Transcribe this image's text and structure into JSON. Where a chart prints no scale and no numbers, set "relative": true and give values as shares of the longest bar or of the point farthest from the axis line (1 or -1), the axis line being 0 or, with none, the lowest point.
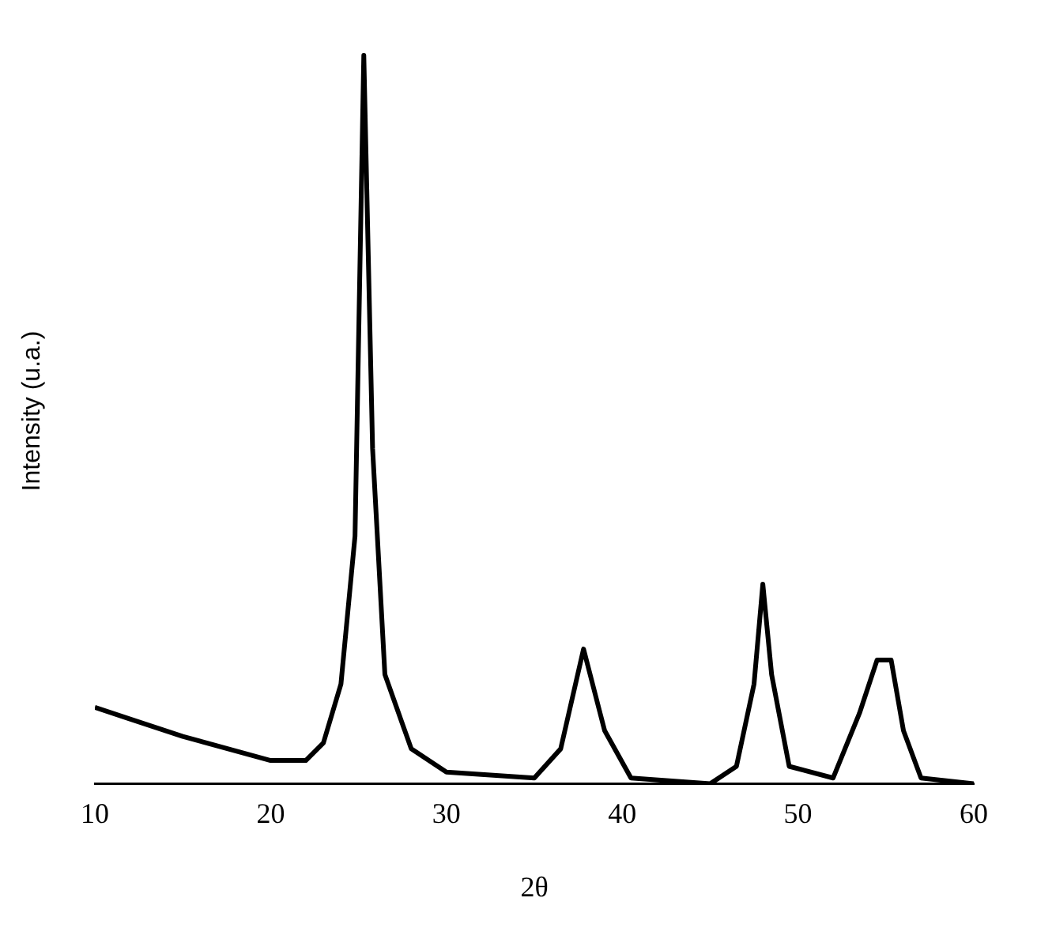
{
  "chart_data": {
    "type": "line",
    "relative": true,
    "xlabel": "2θ",
    "ylabel": "Intensity (u.a.)",
    "xlim": [
      10,
      60
    ],
    "xticks": [
      10,
      20,
      30,
      40,
      50,
      60
    ],
    "grid": false,
    "legend": false,
    "marker": "none",
    "line_style": "solid",
    "series": [
      {
        "color": "#000000",
        "x": [
          10,
          12,
          15,
          20,
          22,
          23,
          24,
          24.8,
          25.3,
          25.8,
          26.5,
          28,
          30,
          35,
          36.5,
          37.8,
          39,
          40.5,
          45,
          46.5,
          47.5,
          48,
          48.5,
          49.5,
          52,
          53.5,
          54.5,
          55.3,
          56,
          57,
          60
        ],
        "values": [
          0.105,
          0.089,
          0.065,
          0.032,
          0.032,
          0.056,
          0.137,
          0.34,
          1.0,
          0.46,
          0.15,
          0.048,
          0.016,
          0.008,
          0.048,
          0.185,
          0.073,
          0.008,
          0.0,
          0.024,
          0.137,
          0.274,
          0.15,
          0.024,
          0.008,
          0.097,
          0.17,
          0.17,
          0.073,
          0.008,
          0.0
        ]
      }
    ]
  }
}
